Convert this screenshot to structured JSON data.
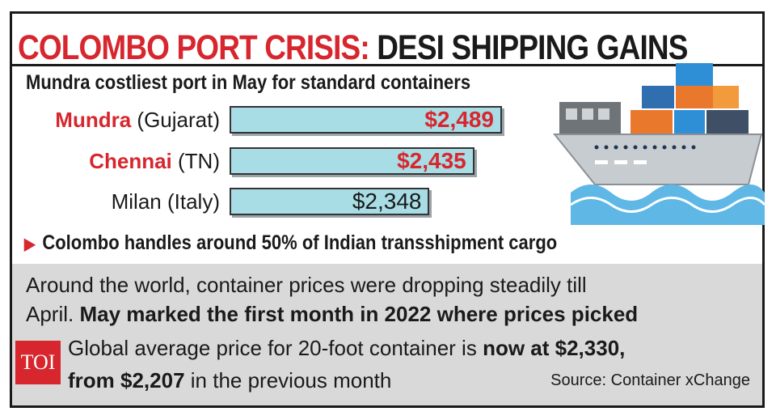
{
  "header": {
    "title_red": "COLOMBO PORT CRISIS:",
    "title_dark": "DESI SHIPPING GAINS"
  },
  "chart_data": {
    "type": "bar",
    "title": "Mundra costliest port in May for standard containers",
    "categories": [
      "Mundra (Gujarat)",
      "Chennai (TN)",
      "Milan (Italy)"
    ],
    "category_names": [
      "Mundra",
      "Chennai",
      "Milan"
    ],
    "category_regions": [
      "(Gujarat)",
      "(TN)",
      "(Italy)"
    ],
    "values": [
      2489,
      2435,
      2348
    ],
    "value_labels": [
      "$2,489",
      "$2,435",
      "$2,348"
    ],
    "highlighted": [
      true,
      true,
      false
    ],
    "orientation": "horizontal",
    "xlim": [
      2100,
      2500
    ]
  },
  "bullet": "Colombo handles around 50% of Indian transshipment cargo",
  "paragraph": {
    "line1": "Around the world, container prices were dropping steadily till",
    "line2_plain": "April.",
    "line2_bold": "May marked the first month in 2022 where prices picked",
    "line3_plain": "Global average price for 20-foot container is",
    "line3_bold": "now at $2,330,",
    "line4_bold": "from $2,207",
    "line4_plain": "in the previous month"
  },
  "source": "Source: Container xChange",
  "logo": "TOI",
  "colors": {
    "accent_red": "#d7262e",
    "bar_fill": "#a8dde5",
    "panel_grey": "#d9d9d9",
    "text_dark": "#1a1a1a"
  }
}
